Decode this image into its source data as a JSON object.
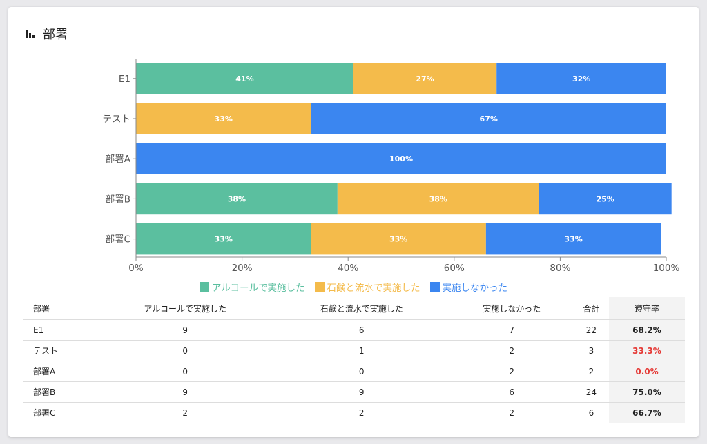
{
  "card": {
    "title": "部署",
    "icon": "bar-chart-icon"
  },
  "chart_data": {
    "type": "bar",
    "orientation": "horizontal",
    "stacked": true,
    "categories": [
      "E1",
      "テスト",
      "部署A",
      "部署B",
      "部署C"
    ],
    "series": [
      {
        "name": "アルコールで実施した",
        "color": "#5bbf9f",
        "values": [
          41,
          0,
          0,
          38,
          33
        ]
      },
      {
        "name": "石鹸と流水で実施した",
        "color": "#f4bb4b",
        "values": [
          27,
          33,
          0,
          38,
          33
        ]
      },
      {
        "name": "実施しなかった",
        "color": "#3b86f0",
        "values": [
          32,
          67,
          100,
          25,
          33
        ]
      }
    ],
    "value_suffix": "%",
    "xlim": [
      0,
      100
    ],
    "xticks": [
      "0%",
      "20%",
      "40%",
      "60%",
      "80%",
      "100%"
    ],
    "grid": false,
    "legend": "bottom"
  },
  "table": {
    "headers": [
      "部署",
      "アルコールで実施した",
      "石鹸と流水で実施した",
      "実施しなかった",
      "合計",
      "遵守率"
    ],
    "rows": [
      {
        "dept": "E1",
        "alcohol": "9",
        "soap": "6",
        "none": "7",
        "total": "22",
        "rate": "68.2%",
        "alert": false
      },
      {
        "dept": "テスト",
        "alcohol": "0",
        "soap": "1",
        "none": "2",
        "total": "3",
        "rate": "33.3%",
        "alert": true
      },
      {
        "dept": "部署A",
        "alcohol": "0",
        "soap": "0",
        "none": "2",
        "total": "2",
        "rate": "0.0%",
        "alert": true
      },
      {
        "dept": "部署B",
        "alcohol": "9",
        "soap": "9",
        "none": "6",
        "total": "24",
        "rate": "75.0%",
        "alert": false
      },
      {
        "dept": "部署C",
        "alcohol": "2",
        "soap": "2",
        "none": "2",
        "total": "6",
        "rate": "66.7%",
        "alert": false
      }
    ]
  }
}
